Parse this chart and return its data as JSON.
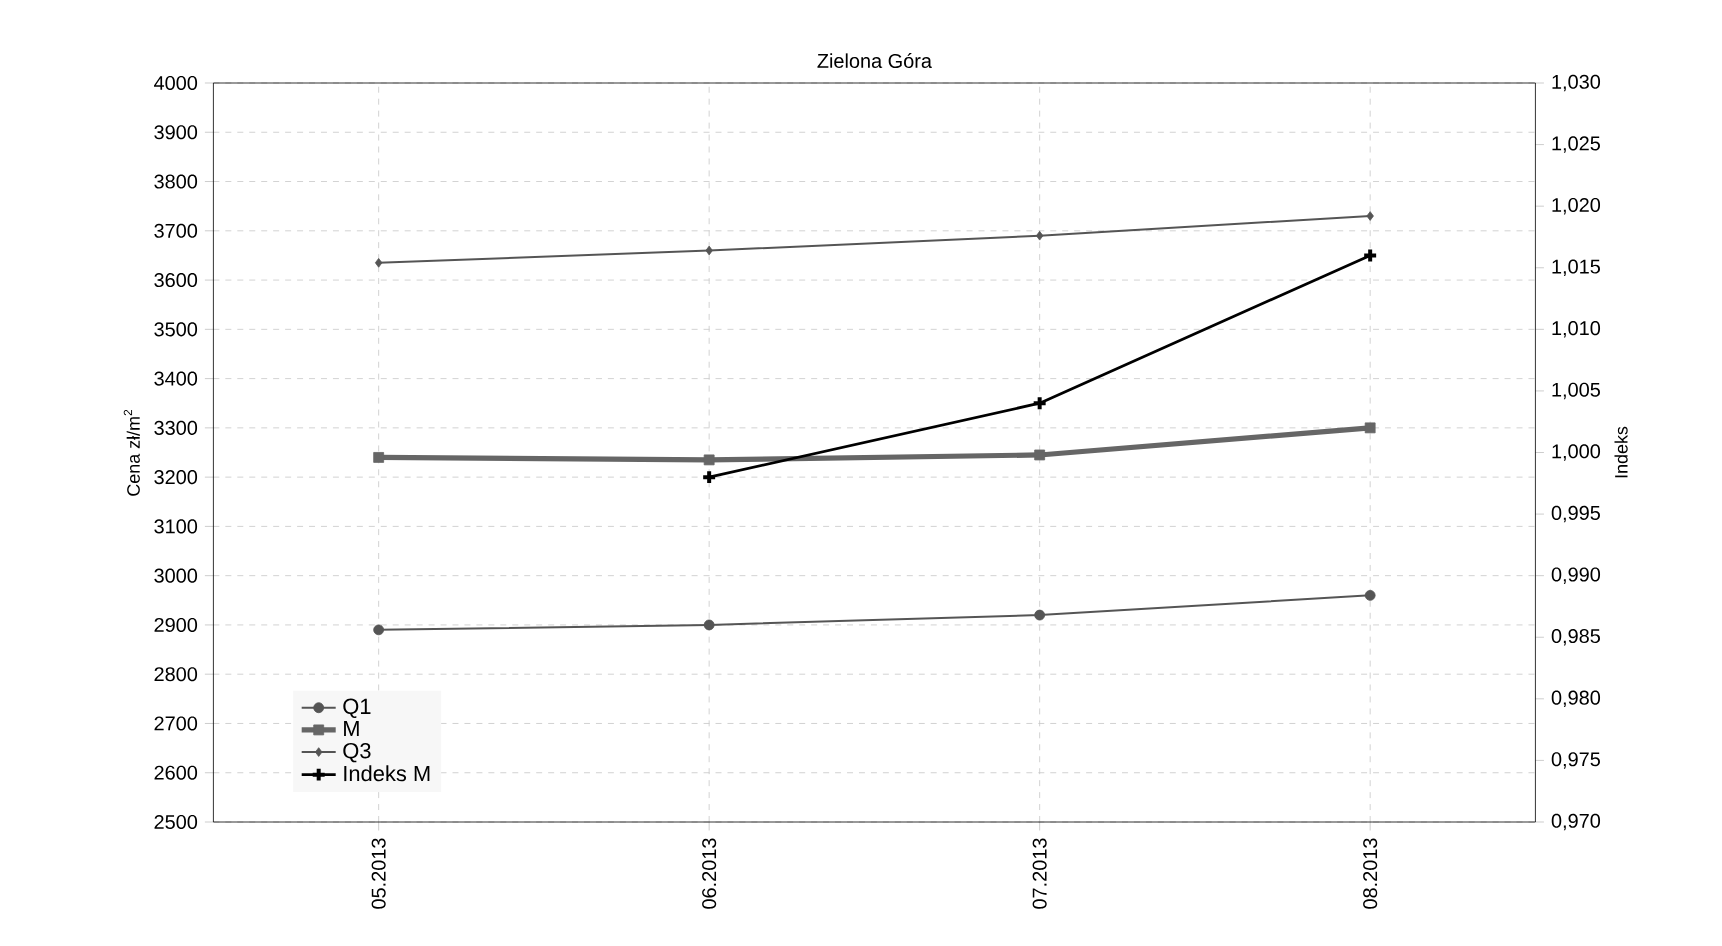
{
  "chart_data": {
    "type": "line",
    "title": "Zielona Góra",
    "ylabel": "Cena zł/m$^{2}$",
    "y2label": "Indeks",
    "categories": [
      "05.2013",
      "06.2013",
      "07.2013",
      "08.2013"
    ],
    "series": [
      {
        "name": "Q1",
        "color": "#555555",
        "marker": "circle",
        "values": [
          2890,
          2900,
          2920,
          2960
        ]
      },
      {
        "name": "M",
        "color": "#666666",
        "marker": "square",
        "values": [
          3240,
          3235,
          3245,
          3300
        ]
      },
      {
        "name": "Q3",
        "color": "#555555",
        "marker": "diamond",
        "values": [
          3635,
          3660,
          3690,
          3730
        ]
      },
      {
        "name": "Indeks M",
        "color": "#000000",
        "marker": "cross",
        "axis": "y2",
        "values": [
          null,
          0.998,
          1.004,
          1.016
        ]
      }
    ],
    "ylim": [
      2500,
      4000
    ],
    "yticks": [
      2500,
      2600,
      2700,
      2800,
      2900,
      3000,
      3100,
      3200,
      3300,
      3400,
      3500,
      3600,
      3700,
      3800,
      3900,
      4000
    ],
    "y2lim": [
      0.97,
      1.03
    ],
    "y2ticks": [
      {
        "value": 0.97,
        "label": "0,970"
      },
      {
        "value": 0.975,
        "label": "0,975"
      },
      {
        "value": 0.98,
        "label": "0,980"
      },
      {
        "value": 0.985,
        "label": "0,985"
      },
      {
        "value": 0.99,
        "label": "0,990"
      },
      {
        "value": 0.995,
        "label": "0,995"
      },
      {
        "value": 1.0,
        "label": "1,000"
      },
      {
        "value": 1.005,
        "label": "1,005"
      },
      {
        "value": 1.01,
        "label": "1,010"
      },
      {
        "value": 1.015,
        "label": "1,015"
      },
      {
        "value": 1.02,
        "label": "1,020"
      },
      {
        "value": 1.025,
        "label": "1,025"
      },
      {
        "value": 1.03,
        "label": "1,030"
      }
    ],
    "grid": true,
    "legend": "bottom left",
    "line_style": "solid"
  }
}
